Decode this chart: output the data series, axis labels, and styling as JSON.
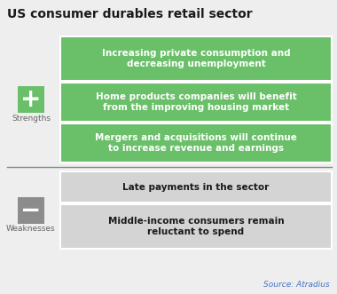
{
  "title": "US consumer durables retail sector",
  "background_color": "#eeeeee",
  "title_color": "#1a1a1a",
  "title_fontsize": 10,
  "strengths_label": "Strengths",
  "weaknesses_label": "Weaknesses",
  "strength_items": [
    "Increasing private consumption and\ndecreasing unemployment",
    "Home products companies will benefit\nfrom the improving housing market",
    "Mergers and acquisitions will continue\nto increase revenue and earnings"
  ],
  "weakness_items": [
    "Late payments in the sector",
    "Middle-income consumers remain\nreluctant to spend"
  ],
  "strength_bg": "#6abf69",
  "strength_text_color": "#ffffff",
  "weakness_bg": "#d4d4d4",
  "weakness_text_color": "#1a1a1a",
  "plus_box_color": "#6abf69",
  "minus_box_color": "#8c8c8c",
  "source_text": "Source: Atradius",
  "source_color": "#4472c4",
  "separator_color": "#888888",
  "item_fontsize": 7.5,
  "label_fontsize": 6.5,
  "plus_fontsize": 20,
  "minus_fontsize": 20
}
